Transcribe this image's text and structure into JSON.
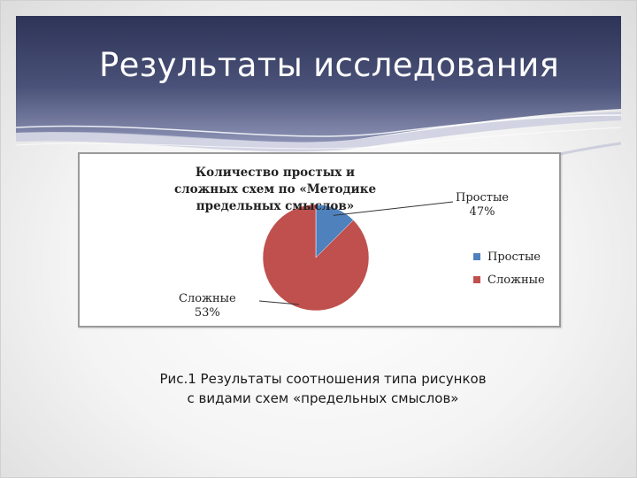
{
  "slide": {
    "title": "Результаты исследования",
    "caption": "Рис.1 Результаты соотношения типа рисунков с видами схем «предельных смыслов»"
  },
  "colors": {
    "header_dark": "#2e3457",
    "header_light": "#8a91b3",
    "slice_simple": "#4f81bd",
    "slice_complex": "#c0504d"
  },
  "chart_data": {
    "type": "pie",
    "title": "Количество простых  и сложных схем по «Методике предельных смыслов»",
    "categories": [
      "Простые",
      "Сложные"
    ],
    "values": [
      47,
      53
    ],
    "data_labels": [
      {
        "category": "Простые",
        "value_text": "47%"
      },
      {
        "category": "Сложные",
        "value_text": "53%"
      }
    ],
    "legend": [
      "Простые",
      "Сложные"
    ],
    "legend_position": "right"
  }
}
